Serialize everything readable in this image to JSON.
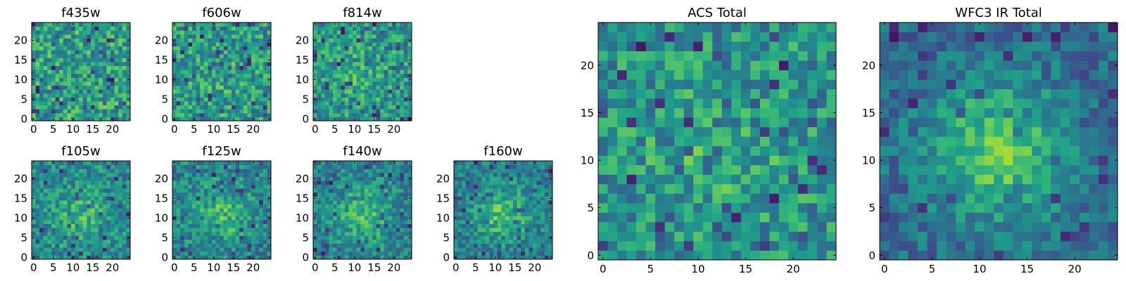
{
  "chart_data": [
    {
      "type": "heatmap",
      "title": "f435w",
      "x_ticks": [
        0,
        5,
        10,
        15,
        20
      ],
      "y_ticks": [
        0,
        5,
        10,
        15,
        20
      ],
      "xlim": [
        0,
        24
      ],
      "ylim": [
        0,
        24
      ],
      "grid_size": 25,
      "center_brightness": 0.0,
      "colormap": "viridis"
    },
    {
      "type": "heatmap",
      "title": "f606w",
      "x_ticks": [
        0,
        5,
        10,
        15,
        20
      ],
      "y_ticks": [
        0,
        5,
        10,
        15,
        20
      ],
      "xlim": [
        0,
        24
      ],
      "ylim": [
        0,
        24
      ],
      "grid_size": 25,
      "center_brightness": 0.1,
      "colormap": "viridis"
    },
    {
      "type": "heatmap",
      "title": "f814w",
      "x_ticks": [
        0,
        5,
        10,
        15,
        20
      ],
      "y_ticks": [
        0,
        5,
        10,
        15,
        20
      ],
      "xlim": [
        0,
        24
      ],
      "ylim": [
        0,
        24
      ],
      "grid_size": 25,
      "center_brightness": 0.15,
      "colormap": "viridis"
    },
    {
      "type": "heatmap",
      "title": "f105w",
      "x_ticks": [
        0,
        5,
        10,
        15,
        20
      ],
      "y_ticks": [
        0,
        5,
        10,
        15,
        20
      ],
      "xlim": [
        0,
        24
      ],
      "ylim": [
        0,
        24
      ],
      "grid_size": 25,
      "center_brightness": 0.35,
      "colormap": "viridis"
    },
    {
      "type": "heatmap",
      "title": "f125w",
      "x_ticks": [
        0,
        5,
        10,
        15,
        20
      ],
      "y_ticks": [
        0,
        5,
        10,
        15,
        20
      ],
      "xlim": [
        0,
        24
      ],
      "ylim": [
        0,
        24
      ],
      "grid_size": 25,
      "center_brightness": 0.4,
      "colormap": "viridis"
    },
    {
      "type": "heatmap",
      "title": "f140w",
      "x_ticks": [
        0,
        5,
        10,
        15,
        20
      ],
      "y_ticks": [
        0,
        5,
        10,
        15,
        20
      ],
      "xlim": [
        0,
        24
      ],
      "ylim": [
        0,
        24
      ],
      "grid_size": 25,
      "center_brightness": 0.45,
      "colormap": "viridis"
    },
    {
      "type": "heatmap",
      "title": "f160w",
      "x_ticks": [
        0,
        5,
        10,
        15,
        20
      ],
      "y_ticks": [
        0,
        5,
        10,
        15,
        20
      ],
      "xlim": [
        0,
        24
      ],
      "ylim": [
        0,
        24
      ],
      "grid_size": 25,
      "center_brightness": 0.5,
      "colormap": "viridis"
    },
    {
      "type": "heatmap",
      "title": "ACS Total",
      "x_ticks": [
        0,
        5,
        10,
        15,
        20
      ],
      "y_ticks": [
        0,
        5,
        10,
        15,
        20
      ],
      "xlim": [
        0,
        24
      ],
      "ylim": [
        0,
        24
      ],
      "grid_size": 25,
      "center_brightness": 0.2,
      "colormap": "viridis"
    },
    {
      "type": "heatmap",
      "title": "WFC3 IR Total",
      "x_ticks": [
        0,
        5,
        10,
        15,
        20
      ],
      "y_ticks": [
        0,
        5,
        10,
        15,
        20
      ],
      "xlim": [
        0,
        24
      ],
      "ylim": [
        0,
        24
      ],
      "grid_size": 25,
      "center_brightness": 0.75,
      "colormap": "viridis"
    }
  ]
}
